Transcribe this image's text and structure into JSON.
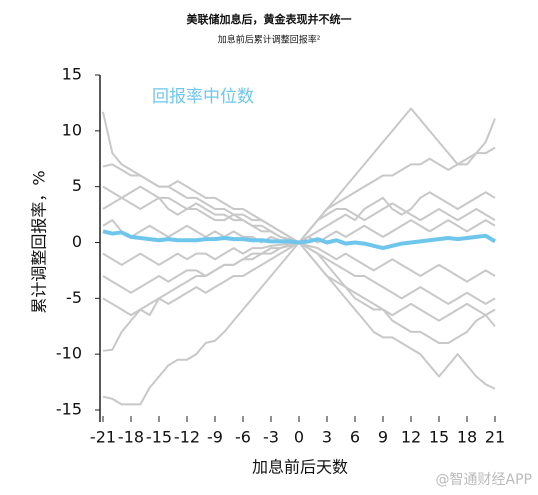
{
  "chart_data": {
    "type": "line",
    "title": "美联储加息后，黄金表现并不统一",
    "subtitle": "加息前后累计调整回报率²",
    "x_label": "加息前后天数",
    "y_label": "累计调整回报率，%",
    "watermark": "@智通财经APP",
    "x": [
      -21,
      -20,
      -19,
      -18,
      -17,
      -16,
      -15,
      -14,
      -13,
      -12,
      -11,
      -10,
      -9,
      -8,
      -7,
      -6,
      -5,
      -4,
      -3,
      -2,
      -1,
      0,
      1,
      2,
      3,
      4,
      5,
      6,
      7,
      8,
      9,
      10,
      11,
      12,
      13,
      14,
      15,
      16,
      17,
      18,
      19,
      20,
      21
    ],
    "xlim": [
      -21,
      21
    ],
    "xticks": [
      -21,
      -18,
      -15,
      -12,
      -9,
      -6,
      -3,
      0,
      3,
      6,
      9,
      12,
      15,
      18,
      21
    ],
    "ylim": [
      -15,
      15
    ],
    "yticks": [
      -15,
      -10,
      -5,
      0,
      5,
      10,
      15
    ],
    "series": [
      {
        "color": "#c8c8c8",
        "values": [
          11.7,
          8,
          7,
          6.5,
          6,
          5.5,
          5,
          5,
          4.5,
          4,
          4,
          3.5,
          3,
          3,
          2.5,
          2.5,
          2,
          2,
          1.5,
          1,
          0.5,
          0,
          1,
          2,
          3,
          4,
          5,
          6,
          7,
          8,
          9,
          10,
          11,
          12,
          11,
          10,
          9,
          8,
          7,
          7,
          8,
          9,
          11.1
        ]
      },
      {
        "color": "#c8c8c8",
        "values": [
          -13.8,
          -14,
          -14.5,
          -14.5,
          -14.5,
          -13,
          -12,
          -11,
          -10.5,
          -10.5,
          -10,
          -9,
          -8.8,
          -8,
          -7,
          -6,
          -5,
          -4,
          -3,
          -2,
          -1,
          0,
          -1,
          -2,
          -3,
          -4,
          -5,
          -6,
          -7,
          -8,
          -8.5,
          -8.5,
          -9,
          -9.5,
          -10,
          -11,
          -12,
          -11,
          -10,
          -11,
          -12,
          -12.7,
          -13.1
        ]
      },
      {
        "color": "#c8c8c8",
        "values": [
          -9.7,
          -9.6,
          -8,
          -7,
          -6,
          -6.5,
          -5,
          -4.5,
          -4,
          -3.5,
          -3,
          -3,
          -2.5,
          -2,
          -2,
          -1.5,
          -1,
          -1,
          -0.5,
          -0.5,
          -0.2,
          0,
          -0.5,
          -1,
          -2,
          -3,
          -4,
          -5,
          -5.5,
          -6,
          -6,
          -7,
          -7.5,
          -8,
          -8,
          -8.5,
          -9,
          -9,
          -8.5,
          -8,
          -7,
          -6.5,
          -7.5
        ]
      },
      {
        "color": "#c8c8c8",
        "values": [
          6.8,
          7,
          6.5,
          6,
          6,
          5.5,
          5,
          5,
          5.5,
          5,
          4.5,
          4,
          4,
          3.5,
          3,
          3,
          2.5,
          2,
          1.5,
          1,
          0.5,
          0,
          1,
          2,
          3,
          3.5,
          4,
          4.5,
          5,
          5.5,
          6,
          6,
          6.5,
          7,
          7,
          7.5,
          7,
          6.5,
          7,
          7.5,
          8,
          8,
          8.5
        ]
      },
      {
        "color": "#c8c8c8",
        "values": [
          3,
          3.5,
          4,
          3.5,
          3,
          3.5,
          4,
          3,
          2.5,
          3,
          3,
          2.5,
          2,
          2,
          2.5,
          2,
          1.5,
          1,
          1,
          0.5,
          0.3,
          0,
          0.5,
          1,
          1.5,
          2,
          2.5,
          2,
          3,
          3.5,
          4,
          3,
          2.5,
          3,
          4,
          4.5,
          4,
          3.5,
          3,
          3.5,
          4,
          4.5,
          4
        ]
      },
      {
        "color": "#c8c8c8",
        "values": [
          -3,
          -3.5,
          -4,
          -4.5,
          -4,
          -3.5,
          -3,
          -3.5,
          -3,
          -2.5,
          -2.5,
          -3,
          -2.5,
          -2,
          -2,
          -1.5,
          -1.5,
          -1,
          -1,
          -0.5,
          -0.3,
          0,
          -0.5,
          -1,
          -1.5,
          -2,
          -2.5,
          -3,
          -3,
          -3.5,
          -4,
          -4.5,
          -5,
          -4.5,
          -4,
          -4.5,
          -5,
          -5.5,
          -5,
          -4.5,
          -5,
          -5.5,
          -5
        ]
      },
      {
        "color": "#c8c8c8",
        "values": [
          -5,
          -5.5,
          -6,
          -6.5,
          -6,
          -5.5,
          -5,
          -5.5,
          -5,
          -4.5,
          -4,
          -4.5,
          -4,
          -3.5,
          -3,
          -3,
          -2.5,
          -2,
          -1.5,
          -1,
          -0.5,
          0,
          -1,
          -2,
          -3,
          -3.5,
          -4,
          -4.5,
          -5,
          -5.5,
          -6,
          -6.5,
          -6,
          -5.5,
          -6,
          -6.5,
          -7,
          -6.5,
          -6,
          -5.5,
          -6,
          -6.5,
          -6
        ]
      },
      {
        "color": "#c8c8c8",
        "values": [
          1.5,
          2,
          1,
          0.5,
          1,
          1.5,
          1,
          0.5,
          1,
          1.5,
          1,
          0.5,
          1,
          0.5,
          1,
          0.5,
          0.5,
          0,
          0.5,
          0.2,
          0.1,
          0,
          0.5,
          0,
          0.5,
          1,
          0.5,
          1,
          1.5,
          1,
          0.5,
          1,
          1.5,
          2,
          1.5,
          1,
          1.5,
          2,
          1.5,
          1,
          1.5,
          2,
          1.5
        ]
      },
      {
        "color": "#c8c8c8",
        "values": [
          -1,
          -1.5,
          -2,
          -1.5,
          -1,
          -1.5,
          -2,
          -1.5,
          -1,
          -1.5,
          -1,
          -1,
          -1.5,
          -1,
          -0.5,
          -1,
          -0.5,
          -0.5,
          -0.3,
          -0.2,
          -0.1,
          0,
          -0.3,
          -0.5,
          -1,
          -1.5,
          -1,
          -1.5,
          -2,
          -2.5,
          -2,
          -1.5,
          -2,
          -2.5,
          -3,
          -2.5,
          -2,
          -2.5,
          -3,
          -3.5,
          -3,
          -2.5,
          -3
        ]
      },
      {
        "color": "#c8c8c8",
        "values": [
          5,
          4.5,
          4,
          4.5,
          5,
          4.5,
          4,
          4,
          3.5,
          3,
          3.5,
          3,
          2.5,
          2.5,
          2,
          2,
          1.5,
          1.5,
          1,
          0.5,
          0.2,
          0,
          1,
          2,
          2.5,
          3,
          3,
          2.5,
          2,
          2.5,
          3,
          3.5,
          3,
          2.5,
          2,
          2.5,
          3,
          2.5,
          2,
          2.5,
          3,
          2.5,
          2
        ]
      },
      {
        "name": "回报率中位数",
        "color": "#6ec6ec",
        "values": [
          1,
          0.8,
          0.9,
          0.5,
          0.4,
          0.3,
          0.2,
          0.3,
          0.2,
          0.2,
          0.2,
          0.3,
          0.3,
          0.4,
          0.3,
          0.3,
          0.2,
          0.2,
          0.1,
          0.1,
          0.1,
          0,
          0.1,
          0.3,
          0,
          0.2,
          -0.1,
          0,
          -0.1,
          -0.3,
          -0.5,
          -0.3,
          -0.1,
          0,
          0.1,
          0.2,
          0.3,
          0.4,
          0.3,
          0.4,
          0.5,
          0.6,
          0.1
        ]
      }
    ]
  }
}
